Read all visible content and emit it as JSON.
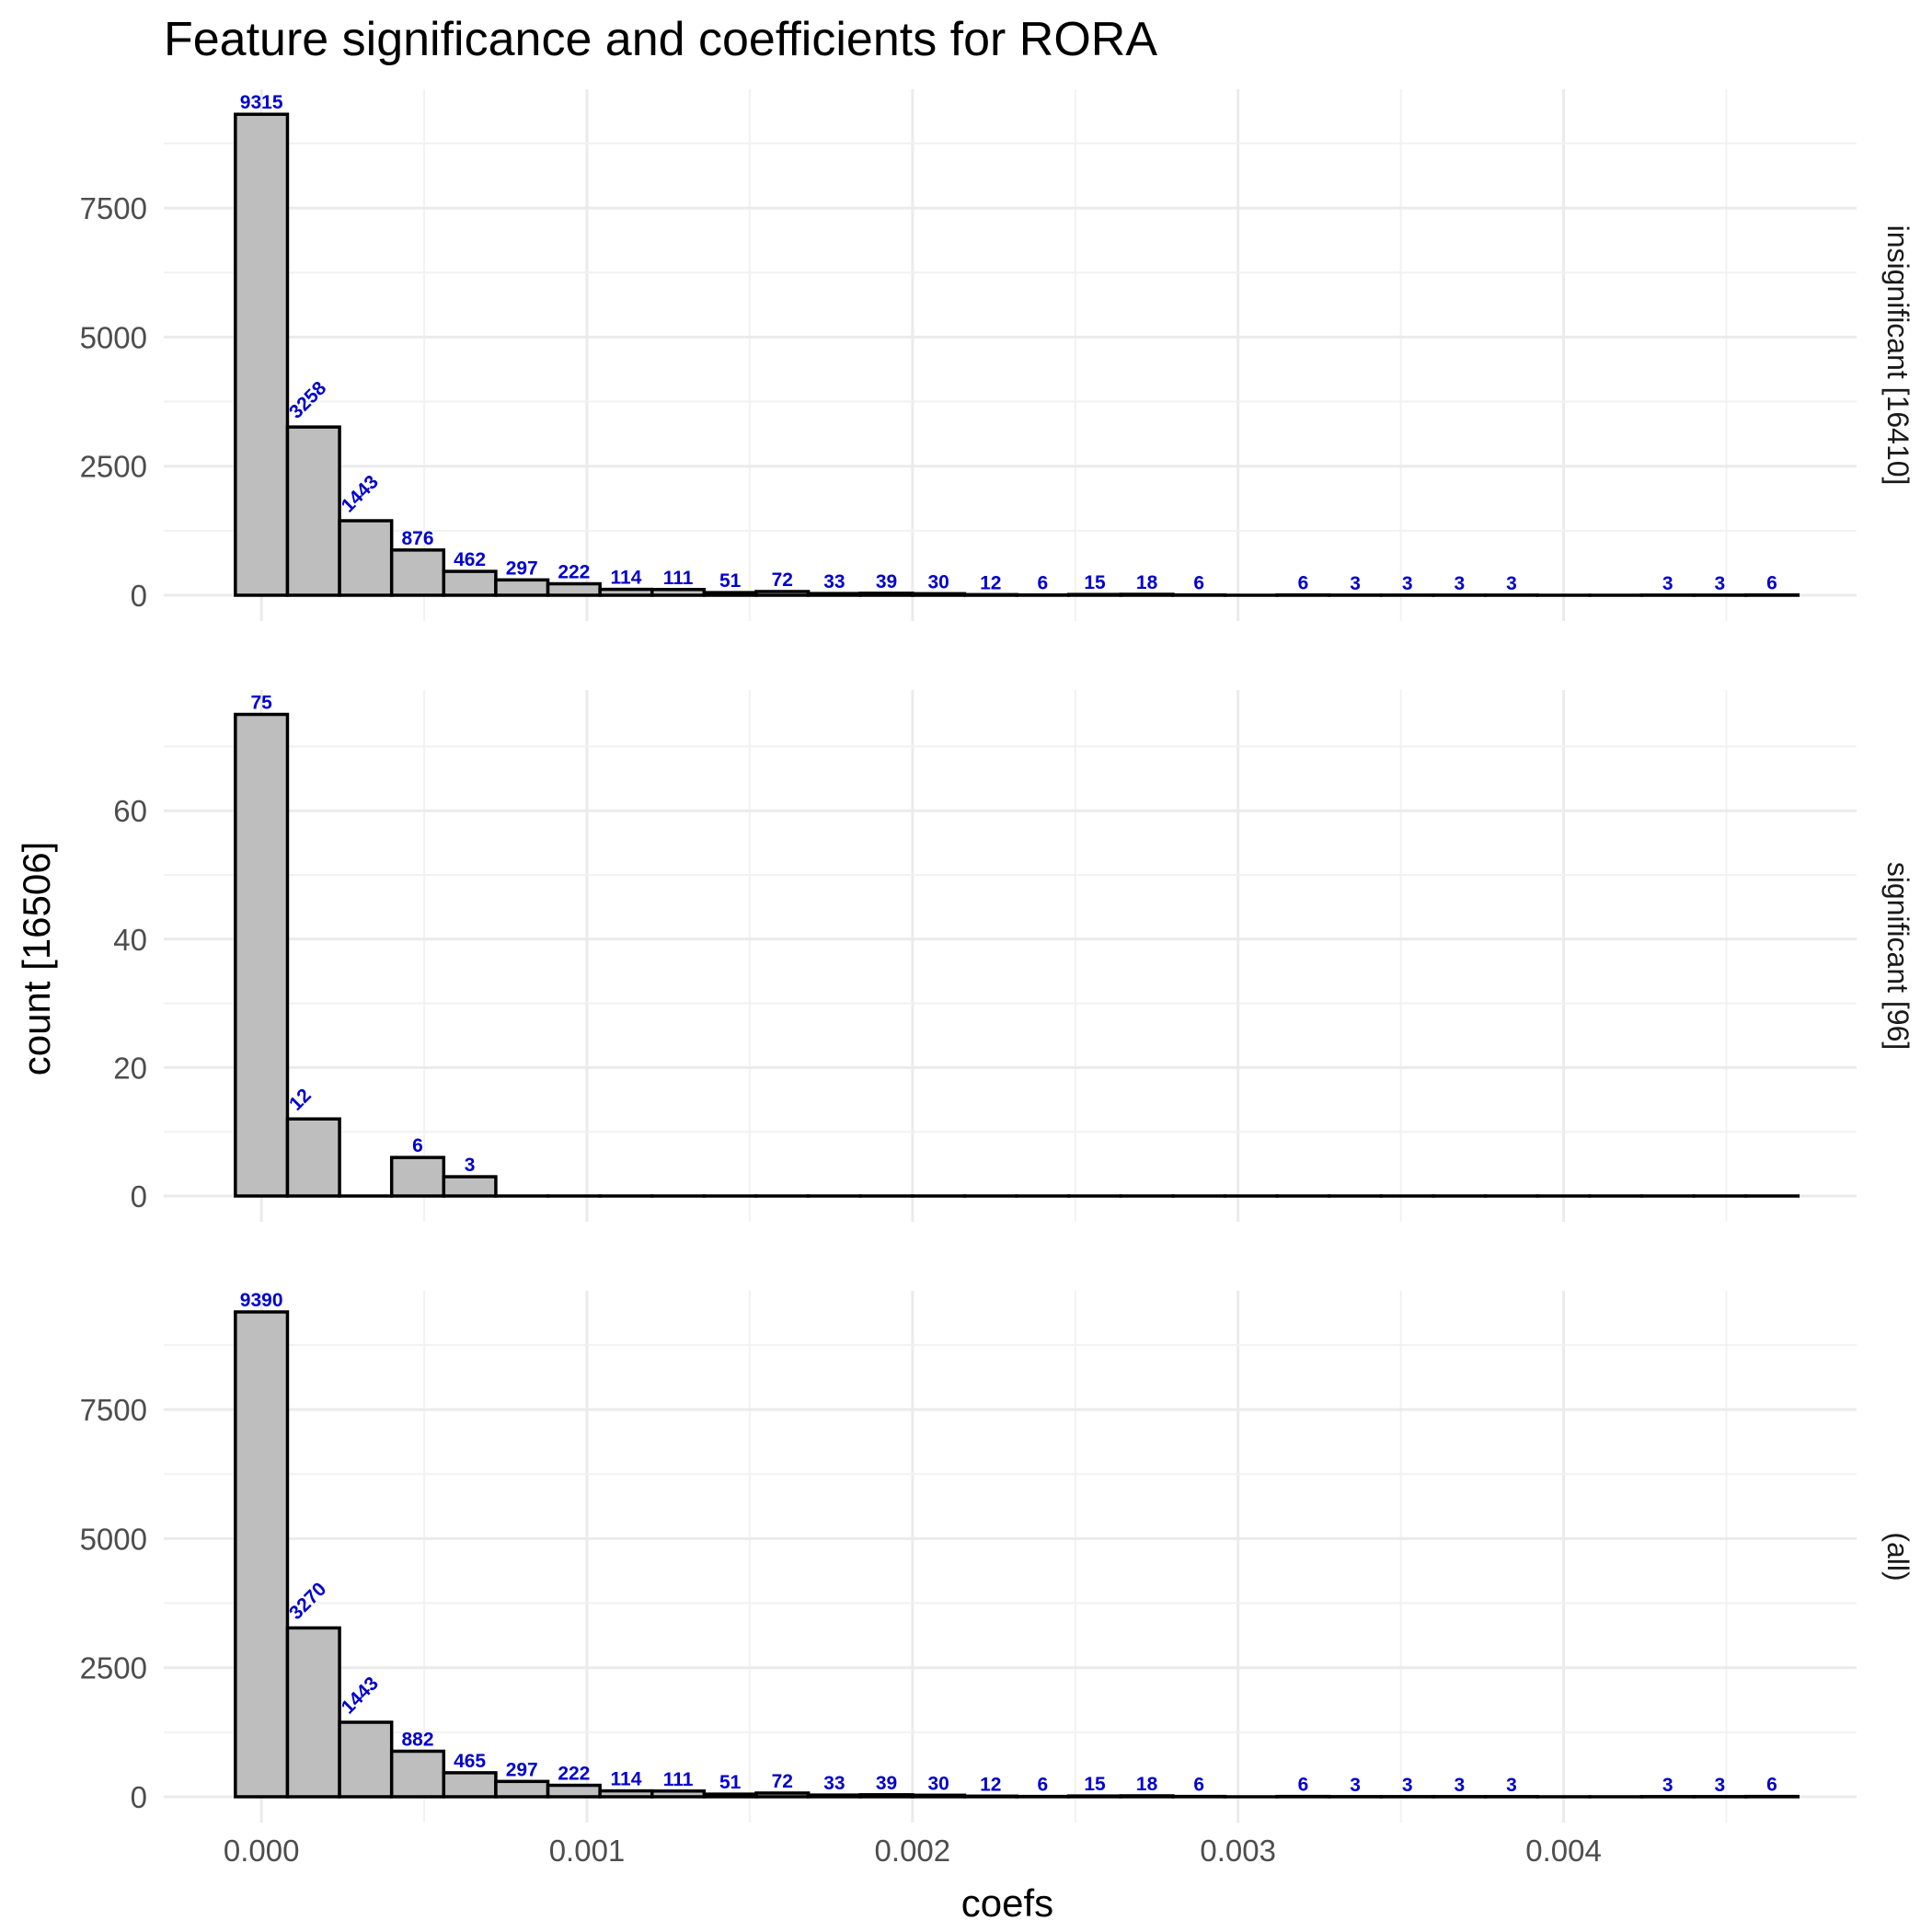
{
  "chart_data": {
    "type": "bar",
    "title": "Feature significance and coefficients for RORA",
    "xlabel": "coefs",
    "ylabel": "count [16506]",
    "bin_width": 0.00016,
    "x_ticks": [
      "0.000",
      "0.001",
      "0.002",
      "0.003",
      "0.004"
    ],
    "x_tick_values": [
      0,
      0.001,
      0.002,
      0.003,
      0.004
    ],
    "xlim": [
      -0.0003,
      0.0049
    ],
    "grid": true,
    "panels": [
      {
        "label": "insignificant [16410]",
        "ylim": [
          0,
          9800
        ],
        "y_ticks": [
          0,
          2500,
          5000,
          7500
        ],
        "y_tick_labels": [
          "0",
          "2500",
          "5000",
          "7500"
        ],
        "bins": [
          0,
          0.00016,
          0.00032,
          0.00048,
          0.00064,
          0.0008,
          0.00096,
          0.00112,
          0.00128,
          0.00144,
          0.0016,
          0.00176,
          0.00192,
          0.00208,
          0.00224,
          0.0024,
          0.00256,
          0.00272,
          0.00288,
          0.00304,
          0.0032,
          0.00336,
          0.00352,
          0.00368,
          0.00384,
          0.004,
          0.00416,
          0.00432,
          0.00448,
          0.00464
        ],
        "counts": [
          9315,
          3258,
          1443,
          876,
          462,
          297,
          222,
          114,
          111,
          51,
          72,
          33,
          39,
          30,
          12,
          6,
          15,
          18,
          6,
          0,
          6,
          3,
          3,
          3,
          3,
          0,
          0,
          3,
          3,
          6
        ],
        "labels": [
          "9315",
          "3258",
          "1443",
          "876",
          "462",
          "297",
          "222",
          "114",
          "111",
          "51",
          "72",
          "33",
          "39",
          "30",
          "12",
          "6",
          "15",
          "18",
          "6",
          "",
          "6",
          "3",
          "3",
          "3",
          "3",
          "",
          "",
          "3",
          "3",
          "6"
        ]
      },
      {
        "label": "significant [96]",
        "ylim": [
          0,
          78.8
        ],
        "y_ticks": [
          0,
          20,
          40,
          60
        ],
        "y_tick_labels": [
          "0",
          "20",
          "40",
          "60"
        ],
        "bins": [
          0,
          0.00016,
          0.00032,
          0.00048,
          0.00064,
          0.0008,
          0.00096,
          0.00112,
          0.00128,
          0.00144,
          0.0016,
          0.00176,
          0.00192,
          0.00208,
          0.00224,
          0.0024,
          0.00256,
          0.00272,
          0.00288,
          0.00304,
          0.0032,
          0.00336,
          0.00352,
          0.00368,
          0.00384,
          0.004,
          0.00416,
          0.00432,
          0.00448,
          0.00464
        ],
        "counts": [
          75,
          12,
          0,
          6,
          3,
          0,
          0,
          0,
          0,
          0,
          0,
          0,
          0,
          0,
          0,
          0,
          0,
          0,
          0,
          0,
          0,
          0,
          0,
          0,
          0,
          0,
          0,
          0,
          0,
          0
        ],
        "labels": [
          "75",
          "12",
          "",
          "6",
          "3",
          "",
          "",
          "",
          "",
          "",
          "",
          "",
          "",
          "",
          "",
          "",
          "",
          "",
          "",
          "",
          "",
          "",
          "",
          "",
          "",
          "",
          "",
          "",
          "",
          ""
        ]
      },
      {
        "label": "(all)",
        "ylim": [
          0,
          9800
        ],
        "y_ticks": [
          0,
          2500,
          5000,
          7500
        ],
        "y_tick_labels": [
          "0",
          "2500",
          "5000",
          "7500"
        ],
        "bins": [
          0,
          0.00016,
          0.00032,
          0.00048,
          0.00064,
          0.0008,
          0.00096,
          0.00112,
          0.00128,
          0.00144,
          0.0016,
          0.00176,
          0.00192,
          0.00208,
          0.00224,
          0.0024,
          0.00256,
          0.00272,
          0.00288,
          0.00304,
          0.0032,
          0.00336,
          0.00352,
          0.00368,
          0.00384,
          0.004,
          0.00416,
          0.00432,
          0.00448,
          0.00464
        ],
        "counts": [
          9390,
          3270,
          1443,
          882,
          465,
          297,
          222,
          114,
          111,
          51,
          72,
          33,
          39,
          30,
          12,
          6,
          15,
          18,
          6,
          0,
          6,
          3,
          3,
          3,
          3,
          0,
          0,
          3,
          3,
          6
        ],
        "labels": [
          "9390",
          "3270",
          "1443",
          "882",
          "465",
          "297",
          "222",
          "114",
          "111",
          "51",
          "72",
          "33",
          "39",
          "30",
          "12",
          "6",
          "15",
          "18",
          "6",
          "",
          "6",
          "3",
          "3",
          "3",
          "3",
          "",
          "",
          "3",
          "3",
          "6"
        ]
      }
    ]
  }
}
